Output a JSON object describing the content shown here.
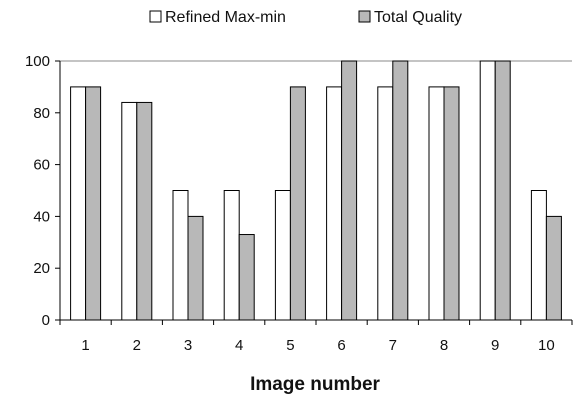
{
  "chart_data": {
    "type": "bar",
    "title": "",
    "xlabel": "Image number",
    "ylabel": "",
    "categories": [
      "1",
      "2",
      "3",
      "4",
      "5",
      "6",
      "7",
      "8",
      "9",
      "10"
    ],
    "series": [
      {
        "name": "Refined Max-min",
        "color": "#ffffff",
        "values": [
          90,
          84,
          50,
          50,
          50,
          90,
          90,
          90,
          100,
          50
        ]
      },
      {
        "name": "Total Quality",
        "color": "#b8b8b8",
        "values": [
          90,
          84,
          40,
          33,
          90,
          100,
          100,
          90,
          100,
          40
        ]
      }
    ],
    "ylim": [
      0,
      100
    ],
    "yticks": [
      "0",
      "20",
      "40",
      "60",
      "80",
      "100"
    ],
    "grid": "top line only",
    "legend": "top"
  }
}
